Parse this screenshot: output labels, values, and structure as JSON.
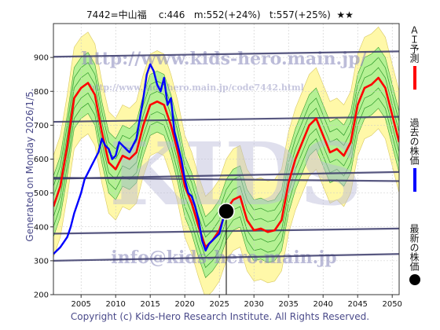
{
  "title": "7442=中山福    c:446   m:552(+24%)   t:557(+25%)  ★★",
  "side_text": "Generated on Monday 2026/1/5.",
  "footer": "Copyright (c) Kids-Hero Research Institute. All Rights Reserved.",
  "watermark": {
    "url": "http://www.kids-hero.main.jp/",
    "url_small": "http://www.kids-hero.main.jp/code7442.html",
    "email": "info@kids-hero.main.jp",
    "big": "KIDS"
  },
  "legend": [
    {
      "label": "ＡＩ予測",
      "color": "#ff0000",
      "type": "line"
    },
    {
      "label": "過去の株価",
      "color": "#0000ff",
      "type": "line"
    },
    {
      "label": "最新の株価",
      "color": "#000000",
      "type": "dot"
    }
  ],
  "colors": {
    "ai": "#ff0000",
    "past": "#0000ff",
    "latest": "#000000",
    "band_outer": "#fff8a8",
    "band_inner": "#a8f090",
    "grid": "#c8c8c8",
    "trendline": "#3a3a6a"
  },
  "chart_data": {
    "type": "line",
    "title": "7442=中山福    c:446   m:552(+24%)   t:557(+25%)  ★★",
    "xlim": [
      2001,
      2051
    ],
    "ylim": [
      200,
      1000
    ],
    "x_ticks": [
      2005,
      2010,
      2015,
      2020,
      2025,
      2030,
      2035,
      2040,
      2045,
      2050
    ],
    "y_ticks": [
      200,
      300,
      400,
      500,
      600,
      700,
      800,
      900
    ],
    "grid": true,
    "latest": {
      "x": 2026.0,
      "y": 446
    },
    "trend_lines": [
      {
        "x": [
          2001,
          2051
        ],
        "y": [
          902,
          918
        ]
      },
      {
        "x": [
          2001,
          2051
        ],
        "y": [
          710,
          725
        ]
      },
      {
        "x": [
          2001,
          2051
        ],
        "y": [
          542,
          562
        ]
      },
      {
        "x": [
          2001,
          2051
        ],
        "y": [
          545,
          535
        ]
      },
      {
        "x": [
          2001,
          2051
        ],
        "y": [
          380,
          395
        ]
      },
      {
        "x": [
          2001,
          2051
        ],
        "y": [
          300,
          320
        ]
      }
    ],
    "series": [
      {
        "name": "ＡＩ予測",
        "x": [
          2001,
          2002,
          2003,
          2004,
          2005,
          2006,
          2007,
          2008,
          2009,
          2010,
          2011,
          2012,
          2013,
          2014,
          2015,
          2016,
          2017,
          2018,
          2019,
          2020,
          2021,
          2022,
          2023,
          2024,
          2025,
          2026,
          2027,
          2028,
          2029,
          2030,
          2031,
          2032,
          2033,
          2034,
          2035,
          2036,
          2037,
          2038,
          2039,
          2040,
          2041,
          2042,
          2043,
          2044,
          2045,
          2046,
          2047,
          2048,
          2049,
          2050,
          2051
        ],
        "y": [
          460,
          520,
          640,
          780,
          810,
          825,
          790,
          680,
          590,
          570,
          610,
          600,
          620,
          700,
          760,
          770,
          760,
          700,
          620,
          520,
          470,
          400,
          340,
          360,
          390,
          450,
          480,
          490,
          420,
          390,
          395,
          385,
          390,
          420,
          530,
          600,
          650,
          700,
          720,
          670,
          620,
          630,
          610,
          650,
          760,
          810,
          820,
          840,
          810,
          730,
          650
        ]
      },
      {
        "name": "過去の株価",
        "x": [
          2001,
          2001.5,
          2002,
          2002.5,
          2003,
          2003.5,
          2004,
          2004.5,
          2005,
          2005.5,
          2006,
          2006.5,
          2007,
          2007.5,
          2008,
          2008.5,
          2009,
          2009.5,
          2010,
          2010.5,
          2011,
          2011.5,
          2012,
          2012.5,
          2013,
          2013.5,
          2014,
          2014.5,
          2015,
          2015.5,
          2016,
          2016.5,
          2017,
          2017.5,
          2018,
          2018.5,
          2019,
          2019.5,
          2020,
          2020.5,
          2021,
          2021.5,
          2022,
          2022.5,
          2023,
          2023.5,
          2024,
          2024.5,
          2025,
          2025.5,
          2026
        ],
        "y": [
          320,
          330,
          340,
          355,
          370,
          400,
          440,
          470,
          500,
          540,
          560,
          580,
          600,
          620,
          660,
          640,
          630,
          600,
          610,
          650,
          640,
          630,
          620,
          640,
          660,
          720,
          780,
          850,
          880,
          860,
          820,
          800,
          840,
          760,
          780,
          680,
          640,
          600,
          540,
          500,
          490,
          460,
          420,
          360,
          330,
          350,
          360,
          370,
          380,
          420,
          446
        ]
      }
    ]
  }
}
